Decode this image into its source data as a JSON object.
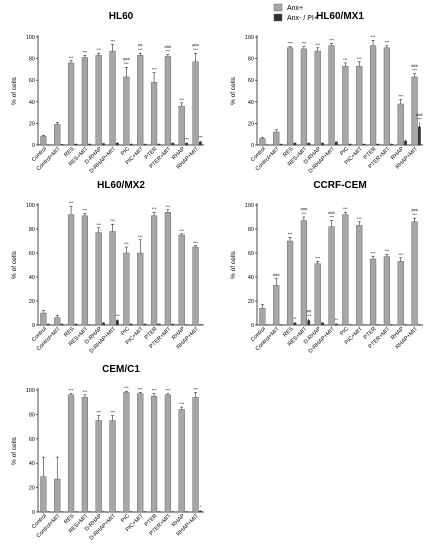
{
  "legend": {
    "items": [
      {
        "label": "Anx+",
        "color": "#a6a6a6"
      },
      {
        "label": "Anx- / PI+",
        "color": "#333333"
      }
    ]
  },
  "chart_data": [
    {
      "type": "bar",
      "title": "HL60",
      "ylabel": "% of cells",
      "ylim": [
        0,
        100
      ],
      "yticks": [
        0,
        20,
        40,
        60,
        80,
        100
      ],
      "categories": [
        "Control",
        "Control+MIT",
        "RES",
        "RES+MIT",
        "D-RHAP",
        "D-RHAP+MIT",
        "PIC",
        "PIC+MIT",
        "PTER",
        "PTER+MIT",
        "RHAP",
        "RHAP+MIT"
      ],
      "series": [
        {
          "name": "Anx+",
          "values": [
            8,
            19,
            76,
            81,
            83,
            87,
            63,
            83,
            58,
            82,
            36,
            77
          ],
          "errors": [
            1,
            2,
            2,
            2,
            2,
            6,
            9,
            2,
            9,
            2,
            3,
            8
          ]
        },
        {
          "name": "Anx- / PI+",
          "values": [
            0.5,
            0.8,
            1,
            1,
            1.5,
            2,
            1,
            1,
            1,
            2,
            2,
            3
          ],
          "errors": [
            0.3,
            0.3,
            0.5,
            0.5,
            0.5,
            0.5,
            0.5,
            0.5,
            0.5,
            0.5,
            0.5,
            1
          ]
        }
      ],
      "annotations": {
        "anx": [
          "",
          "",
          "***",
          "***",
          "***",
          "***",
          "***",
          "***",
          "***",
          "***",
          "***",
          "***"
        ],
        "anx_hash": [
          "",
          "",
          "",
          "",
          "",
          "",
          "###",
          "##",
          "",
          "###",
          "",
          "###"
        ],
        "pi": [
          "",
          "",
          "",
          "",
          "",
          "",
          "",
          "",
          "",
          "",
          "***",
          "***"
        ]
      }
    },
    {
      "type": "bar",
      "title": "HL60/MX1",
      "ylabel": "% of cells",
      "ylim": [
        0,
        100
      ],
      "yticks": [
        0,
        20,
        40,
        60,
        80,
        100
      ],
      "categories": [
        "Control",
        "Control+MIT",
        "RES",
        "RES+MIT",
        "D-RHAP",
        "D-RHAP+MIT",
        "PIC",
        "PIC+MIT",
        "PTER",
        "PTER+MIT",
        "RHAP",
        "RHAP+MIT"
      ],
      "series": [
        {
          "name": "Anx+",
          "values": [
            6,
            12,
            90,
            89,
            87,
            92,
            73,
            73,
            92,
            90,
            38,
            63
          ],
          "errors": [
            1,
            2,
            1,
            2,
            3,
            2,
            3,
            4,
            5,
            2,
            4,
            3
          ]
        },
        {
          "name": "Anx- / PI+",
          "values": [
            0.5,
            1,
            2,
            2,
            2,
            3,
            1,
            1,
            1,
            1,
            4,
            17
          ],
          "errors": [
            0.3,
            0.5,
            0.5,
            0.5,
            0.5,
            0.5,
            0.5,
            0.5,
            0.5,
            0.5,
            1,
            4
          ]
        }
      ],
      "annotations": {
        "anx": [
          "",
          "",
          "***",
          "***",
          "***",
          "***",
          "***",
          "***",
          "***",
          "***",
          "***",
          "***"
        ],
        "anx_hash": [
          "",
          "",
          "",
          "",
          "",
          "",
          "",
          "",
          "",
          "",
          "",
          "###"
        ],
        "pi": [
          "",
          "",
          "",
          "",
          "",
          "",
          "",
          "",
          "",
          "",
          "",
          "***"
        ],
        "pi_hash": [
          "",
          "",
          "",
          "",
          "",
          "",
          "",
          "",
          "",
          "",
          "",
          "###"
        ]
      }
    },
    {
      "type": "bar",
      "title": "HL60/MX2",
      "ylabel": "% of cells",
      "ylim": [
        0,
        100
      ],
      "yticks": [
        0,
        20,
        40,
        60,
        80,
        100
      ],
      "categories": [
        "Control",
        "Control+MIT",
        "RES",
        "RES+MIT",
        "D-RHAP",
        "D-RHAP+MIT",
        "PIC",
        "PIC+MIT",
        "PTER",
        "PTER+MIT",
        "RHAP",
        "RHAP+MIT"
      ],
      "series": [
        {
          "name": "Anx+",
          "values": [
            10,
            6,
            92,
            91,
            77,
            78,
            60,
            60,
            91,
            94,
            75,
            65
          ],
          "errors": [
            2,
            2,
            7,
            2,
            4,
            6,
            5,
            11,
            3,
            2,
            1,
            1
          ]
        },
        {
          "name": "Anx- / PI+",
          "values": [
            1,
            1,
            1,
            0.5,
            2,
            4,
            1,
            1,
            1,
            1,
            0.5,
            0.5
          ],
          "errors": [
            0.3,
            0.3,
            0.3,
            0.3,
            0.5,
            1,
            0.5,
            0.5,
            0.3,
            0.3,
            0.3,
            0.3
          ]
        }
      ],
      "annotations": {
        "anx": [
          "",
          "",
          "***",
          "***",
          "***",
          "***",
          "***",
          "***",
          "***",
          "***",
          "***",
          "***"
        ],
        "pi": [
          "",
          "",
          "",
          "",
          "",
          "***",
          "",
          "",
          "",
          "",
          "",
          ""
        ]
      }
    },
    {
      "type": "bar",
      "title": "CCRF-CEM",
      "ylabel": "% of cells",
      "ylim": [
        0,
        100
      ],
      "yticks": [
        0,
        20,
        40,
        60,
        80,
        100
      ],
      "categories": [
        "Control",
        "Control+MIT",
        "RES",
        "RES+MIT",
        "D-RHAP",
        "D-RHAP+MIT",
        "PIC",
        "PIC+MIT",
        "PTER",
        "PTER+MIT",
        "RHAP",
        "RHAP+MIT"
      ],
      "series": [
        {
          "name": "Anx+",
          "values": [
            14,
            33,
            70,
            87,
            51,
            82,
            92,
            83,
            55,
            57,
            53,
            86
          ],
          "errors": [
            3,
            6,
            3,
            3,
            2,
            5,
            2,
            3,
            2,
            2,
            3,
            3
          ]
        },
        {
          "name": "Anx- / PI+",
          "values": [
            0.5,
            0.5,
            2,
            4,
            2,
            1,
            0.5,
            0.5,
            0.5,
            0.5,
            0.5,
            0.5
          ],
          "errors": [
            0.3,
            0.3,
            0.5,
            1,
            0.5,
            0.5,
            0.3,
            0.3,
            0.3,
            0.3,
            0.3,
            0.3
          ]
        }
      ],
      "annotations": {
        "anx": [
          "",
          "",
          "***",
          "***",
          "***",
          "***",
          "***",
          "***",
          "***",
          "***",
          "***",
          "***"
        ],
        "anx_hash": [
          "",
          "###",
          "",
          "###",
          "",
          "###",
          "",
          "",
          "",
          "",
          "",
          "###"
        ],
        "pi": [
          "",
          "",
          "**",
          "***",
          "",
          "**",
          "",
          "",
          "",
          "",
          "",
          ""
        ],
        "pi_hash": [
          "",
          "",
          "",
          "##",
          "",
          "",
          "",
          "",
          "",
          "",
          "",
          ""
        ]
      }
    },
    {
      "type": "bar",
      "title": "CEM/C1",
      "ylabel": "% of cells",
      "ylim": [
        0,
        100
      ],
      "yticks": [
        0,
        20,
        40,
        60,
        80,
        100
      ],
      "categories": [
        "Control",
        "Control+MIT",
        "RES",
        "RES+MIT",
        "D-RHAP",
        "D-RHAP+MIT",
        "PIC",
        "PIC+MIT",
        "PTER",
        "PTER+MIT",
        "RHAP",
        "RHAP+MIT"
      ],
      "series": [
        {
          "name": "Anx+",
          "values": [
            29,
            27,
            96,
            94,
            75,
            75,
            98,
            97,
            95,
            96,
            84,
            94
          ],
          "errors": [
            16,
            18,
            1,
            2,
            4,
            4,
            1,
            1,
            2,
            1,
            2,
            4
          ]
        },
        {
          "name": "Anx- / PI+",
          "values": [
            0.5,
            0.5,
            0.5,
            0.5,
            0.5,
            0.5,
            0.5,
            0.5,
            0.5,
            0.5,
            0.5,
            1
          ],
          "errors": [
            0.3,
            0.3,
            0.3,
            0.3,
            0.3,
            0.3,
            0.3,
            0.3,
            0.3,
            0.3,
            0.3,
            0.5
          ]
        }
      ],
      "annotations": {
        "anx": [
          "",
          "",
          "***",
          "***",
          "***",
          "***",
          "***",
          "***",
          "***",
          "***",
          "***",
          "***"
        ],
        "pi": [
          "",
          "",
          "",
          "",
          "",
          "",
          "",
          "",
          "",
          "",
          "",
          "*"
        ]
      }
    }
  ]
}
